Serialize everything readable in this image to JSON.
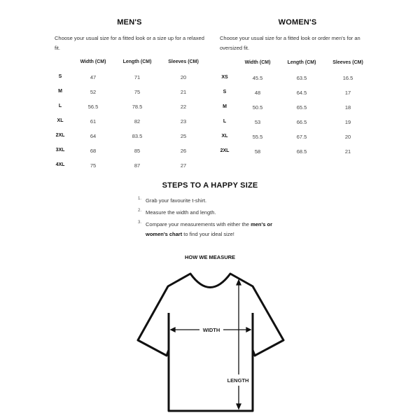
{
  "mens": {
    "title": "MEN'S",
    "description": "Choose your usual size for a fitted look or a size up for a relaxed fit.",
    "headers": [
      "Width (CM)",
      "Length (CM)",
      "Sleeves (CM)"
    ],
    "rows": [
      {
        "size": "S",
        "width": "47",
        "length": "71",
        "sleeves": "20"
      },
      {
        "size": "M",
        "width": "52",
        "length": "75",
        "sleeves": "21"
      },
      {
        "size": "L",
        "width": "56.5",
        "length": "78.5",
        "sleeves": "22"
      },
      {
        "size": "XL",
        "width": "61",
        "length": "82",
        "sleeves": "23"
      },
      {
        "size": "2XL",
        "width": "64",
        "length": "83.5",
        "sleeves": "25"
      },
      {
        "size": "3XL",
        "width": "68",
        "length": "85",
        "sleeves": "26"
      },
      {
        "size": "4XL",
        "width": "75",
        "length": "87",
        "sleeves": "27"
      }
    ]
  },
  "womens": {
    "title": "WOMEN'S",
    "description": "Choose your usual size for a fitted look or order men's for an oversized fit.",
    "headers": [
      "Width (CM)",
      "Length (CM)",
      "Sleeves (CM)"
    ],
    "rows": [
      {
        "size": "XS",
        "width": "45.5",
        "length": "63.5",
        "sleeves": "16.5"
      },
      {
        "size": "S",
        "width": "48",
        "length": "64.5",
        "sleeves": "17"
      },
      {
        "size": "M",
        "width": "50.5",
        "length": "65.5",
        "sleeves": "18"
      },
      {
        "size": "L",
        "width": "53",
        "length": "66.5",
        "sleeves": "19"
      },
      {
        "size": "XL",
        "width": "55.5",
        "length": "67.5",
        "sleeves": "20"
      },
      {
        "size": "2XL",
        "width": "58",
        "length": "68.5",
        "sleeves": "21"
      }
    ]
  },
  "steps": {
    "title": "STEPS TO A HAPPY SIZE",
    "items": [
      {
        "num": "1.",
        "text": "Grab your favourite t-shirt."
      },
      {
        "num": "2.",
        "text": "Measure the width and length."
      },
      {
        "num": "3.",
        "text_before": "Compare your measurements with either the ",
        "bold": "men's or women's chart",
        "text_after": " to find your ideal size!"
      }
    ]
  },
  "measure": {
    "title": "HOW WE MEASURE",
    "width_label": "WIDTH",
    "length_label": "LENGTH",
    "icon": "t-shirt-diagram"
  }
}
